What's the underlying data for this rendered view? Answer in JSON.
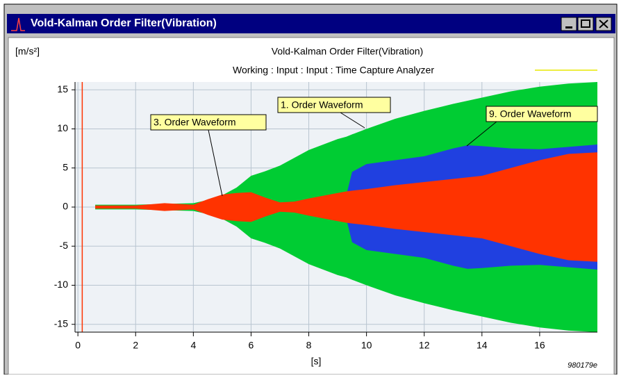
{
  "window": {
    "title": "Vold-Kalman Order Filter(Vibration)"
  },
  "chart_data": {
    "type": "envelope",
    "title": "Vold-Kalman Order Filter(Vibration)",
    "subtitle": "Working : Input : Input : Time Capture Analyzer",
    "y_label": "[m/s²]",
    "x_label": "[s]",
    "footnote": "980179e",
    "x": [
      0.6,
      1,
      2,
      3,
      4,
      4.5,
      5,
      5.5,
      6,
      6.5,
      7,
      7.5,
      8,
      9,
      9.3,
      9.5,
      10,
      11,
      12,
      13,
      13.5,
      14,
      15,
      16,
      17,
      18
    ],
    "series": [
      {
        "name": "1. Order Waveform",
        "color": "#00cc33",
        "values": [
          0.3,
          0.3,
          0.3,
          0.4,
          0.5,
          0.9,
          1.5,
          2.5,
          4,
          4.6,
          5.3,
          6.3,
          7.3,
          8.7,
          9,
          9.3,
          10,
          11.3,
          12.3,
          13.2,
          13.6,
          14,
          14.8,
          15.4,
          15.8,
          16
        ]
      },
      {
        "name": "9. Order Waveform",
        "color": "#2040e0",
        "values": [
          null,
          null,
          null,
          null,
          null,
          null,
          null,
          null,
          null,
          null,
          null,
          null,
          null,
          0,
          1.5,
          4.5,
          5.5,
          6,
          6.5,
          7.5,
          7.9,
          7.8,
          7.5,
          7.4,
          7.7,
          8
        ]
      },
      {
        "name": "3. Order Waveform",
        "color": "#ff3300",
        "values": [
          0.2,
          0.2,
          0.2,
          0.5,
          0.3,
          1,
          1.6,
          1.8,
          1.9,
          1.2,
          0.6,
          0.7,
          1.1,
          1.8,
          2,
          2.1,
          2.3,
          2.8,
          3.2,
          3.6,
          3.8,
          4,
          5,
          6,
          6.8,
          7
        ]
      }
    ],
    "cursor": 0.15,
    "cursor_color": "#ff3300",
    "xlim": [
      -0.1,
      18
    ],
    "ylim": [
      -16,
      16
    ],
    "xticks": [
      0,
      2,
      4,
      6,
      8,
      10,
      12,
      14,
      16
    ],
    "yticks": [
      -15,
      -10,
      -5,
      0,
      5,
      10,
      15
    ],
    "grid": true
  }
}
